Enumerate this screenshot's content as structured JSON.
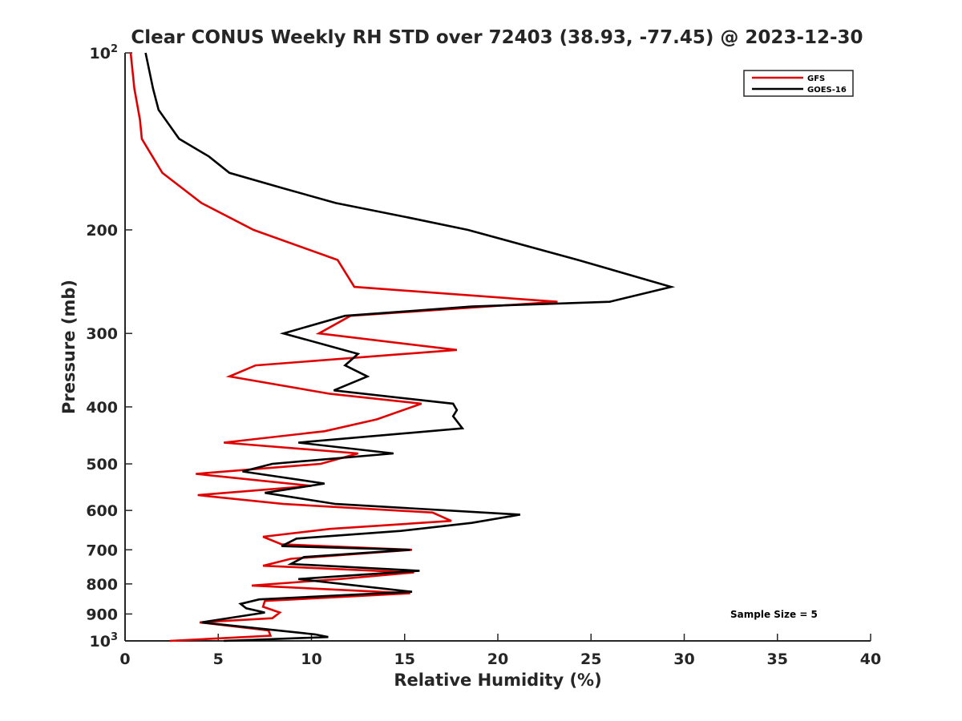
{
  "chart_data": {
    "type": "line",
    "title": "Clear CONUS Weekly RH STD over 72403 (38.93, -77.45) @ 2023-12-30",
    "xlabel": "Relative Humidity (%)",
    "ylabel": "Pressure (mb)",
    "xlim": [
      0,
      40
    ],
    "ylim": [
      100,
      1000
    ],
    "y_scale": "log",
    "y_reversed": true,
    "x_ticks": [
      "0",
      "5",
      "10",
      "15",
      "20",
      "25",
      "30",
      "35",
      "40"
    ],
    "y_ticks": [
      {
        "value": 100,
        "base": "10",
        "exp": "2"
      },
      {
        "value": 200,
        "label": "200"
      },
      {
        "value": 300,
        "label": "300"
      },
      {
        "value": 400,
        "label": "400"
      },
      {
        "value": 500,
        "label": "500"
      },
      {
        "value": 600,
        "label": "600"
      },
      {
        "value": 700,
        "label": "700"
      },
      {
        "value": 800,
        "label": "800"
      },
      {
        "value": 900,
        "label": "900"
      },
      {
        "value": 1000,
        "base": "10",
        "exp": "3"
      }
    ],
    "grid": false,
    "legend_position": "top-right",
    "annotation": "Sample Size = 5",
    "series": [
      {
        "name": "GFS",
        "color": "#e00000",
        "points": [
          [
            0.3,
            100
          ],
          [
            0.5,
            115
          ],
          [
            0.8,
            130
          ],
          [
            0.9,
            140
          ],
          [
            2.0,
            160
          ],
          [
            4.1,
            180
          ],
          [
            6.9,
            200
          ],
          [
            11.4,
            225
          ],
          [
            12.3,
            250
          ],
          [
            23.2,
            265
          ],
          [
            12.1,
            280
          ],
          [
            10.4,
            300
          ],
          [
            17.8,
            320
          ],
          [
            7.0,
            340
          ],
          [
            5.6,
            355
          ],
          [
            11.0,
            380
          ],
          [
            15.9,
            395
          ],
          [
            13.5,
            420
          ],
          [
            10.7,
            440
          ],
          [
            5.3,
            460
          ],
          [
            12.5,
            480
          ],
          [
            10.5,
            500
          ],
          [
            3.8,
            520
          ],
          [
            10.0,
            545
          ],
          [
            3.9,
            565
          ],
          [
            8.5,
            585
          ],
          [
            16.5,
            605
          ],
          [
            17.5,
            625
          ],
          [
            11.0,
            645
          ],
          [
            7.4,
            665
          ],
          [
            8.4,
            685
          ],
          [
            15.4,
            700
          ],
          [
            8.9,
            725
          ],
          [
            7.4,
            745
          ],
          [
            15.5,
            765
          ],
          [
            11.5,
            785
          ],
          [
            6.8,
            805
          ],
          [
            15.3,
            830
          ],
          [
            7.5,
            855
          ],
          [
            7.4,
            875
          ],
          [
            8.3,
            895
          ],
          [
            7.9,
            915
          ],
          [
            4.0,
            930
          ],
          [
            7.7,
            960
          ],
          [
            7.8,
            980
          ],
          [
            2.4,
            1000
          ]
        ]
      },
      {
        "name": "GOES-16",
        "color": "#000000",
        "points": [
          [
            1.1,
            100
          ],
          [
            1.5,
            115
          ],
          [
            1.8,
            125
          ],
          [
            2.9,
            140
          ],
          [
            4.5,
            150
          ],
          [
            5.6,
            160
          ],
          [
            8.5,
            170
          ],
          [
            11.3,
            180
          ],
          [
            15.0,
            190
          ],
          [
            18.4,
            200
          ],
          [
            24.3,
            225
          ],
          [
            29.3,
            250
          ],
          [
            26.0,
            265
          ],
          [
            18.6,
            270
          ],
          [
            11.8,
            280
          ],
          [
            8.5,
            300
          ],
          [
            12.5,
            325
          ],
          [
            11.8,
            340
          ],
          [
            13.0,
            355
          ],
          [
            11.2,
            375
          ],
          [
            17.6,
            395
          ],
          [
            17.8,
            405
          ],
          [
            17.6,
            415
          ],
          [
            18.1,
            435
          ],
          [
            9.3,
            460
          ],
          [
            14.4,
            480
          ],
          [
            7.9,
            500
          ],
          [
            6.3,
            515
          ],
          [
            10.7,
            540
          ],
          [
            7.5,
            560
          ],
          [
            11.3,
            585
          ],
          [
            21.2,
            610
          ],
          [
            18.6,
            630
          ],
          [
            14.8,
            650
          ],
          [
            9.2,
            670
          ],
          [
            8.4,
            690
          ],
          [
            15.3,
            700
          ],
          [
            9.6,
            720
          ],
          [
            8.9,
            740
          ],
          [
            15.8,
            760
          ],
          [
            9.3,
            785
          ],
          [
            15.4,
            825
          ],
          [
            7.2,
            850
          ],
          [
            6.2,
            865
          ],
          [
            6.5,
            880
          ],
          [
            7.5,
            895
          ],
          [
            4.1,
            930
          ],
          [
            10.2,
            975
          ],
          [
            10.9,
            985
          ],
          [
            5.3,
            1000
          ]
        ]
      }
    ]
  }
}
